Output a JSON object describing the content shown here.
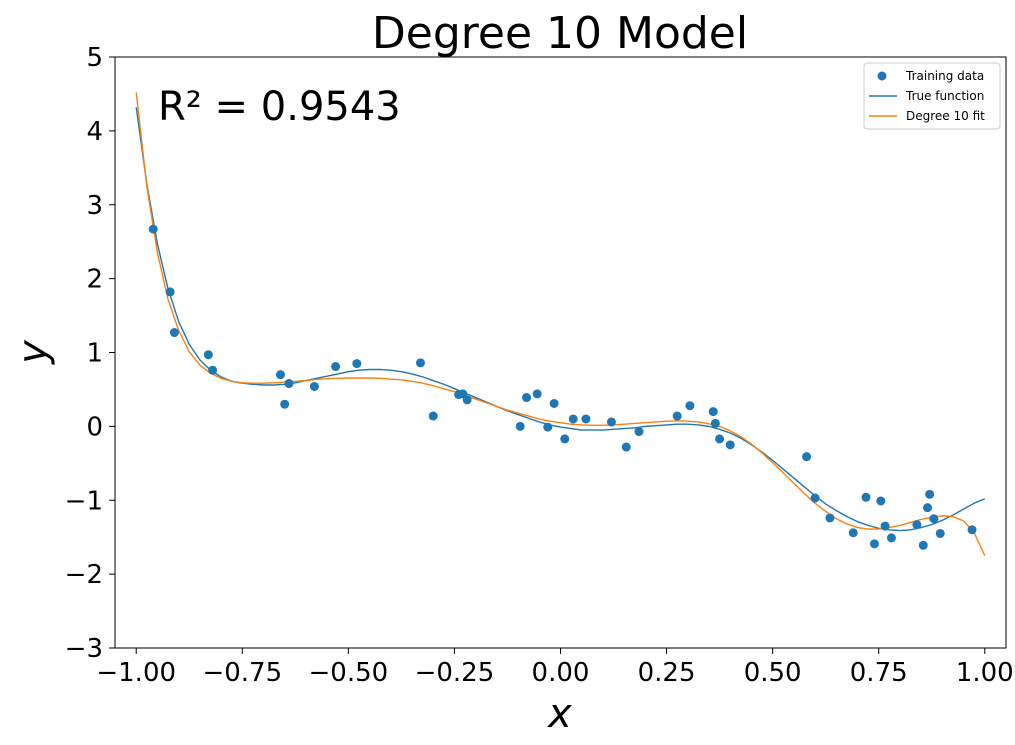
{
  "chart_data": {
    "type": "scatter",
    "title": "Degree 10 Model",
    "xlabel": "x",
    "ylabel": "y",
    "xlim": [
      -1.05,
      1.05
    ],
    "ylim": [
      -3,
      5
    ],
    "xticks": [
      -1.0,
      -0.75,
      -0.5,
      -0.25,
      0.0,
      0.25,
      0.5,
      0.75,
      1.0
    ],
    "xtick_labels": [
      "−1.00",
      "−0.75",
      "−0.50",
      "−0.25",
      "0.00",
      "0.25",
      "0.50",
      "0.75",
      "1.00"
    ],
    "yticks": [
      -3,
      -2,
      -1,
      0,
      1,
      2,
      3,
      4,
      5
    ],
    "ytick_labels": [
      "−3",
      "−2",
      "−1",
      "0",
      "1",
      "2",
      "3",
      "4",
      "5"
    ],
    "annotation": "R² = 0.9543",
    "legend_position": "top-right",
    "colors": {
      "training": "#1f77b4",
      "true_function": "#1f77b4",
      "fit": "#ff7f0e"
    },
    "series": [
      {
        "name": "Training data",
        "kind": "scatter",
        "points": [
          [
            -0.96,
            2.67
          ],
          [
            -0.92,
            1.82
          ],
          [
            -0.91,
            1.27
          ],
          [
            -0.83,
            0.97
          ],
          [
            -0.82,
            0.76
          ],
          [
            -0.66,
            0.7
          ],
          [
            -0.65,
            0.3
          ],
          [
            -0.64,
            0.58
          ],
          [
            -0.58,
            0.54
          ],
          [
            -0.53,
            0.81
          ],
          [
            -0.48,
            0.85
          ],
          [
            -0.33,
            0.86
          ],
          [
            -0.3,
            0.14
          ],
          [
            -0.24,
            0.43
          ],
          [
            -0.23,
            0.44
          ],
          [
            -0.22,
            0.36
          ],
          [
            -0.095,
            0.0
          ],
          [
            -0.08,
            0.39
          ],
          [
            -0.055,
            0.44
          ],
          [
            -0.03,
            -0.01
          ],
          [
            -0.015,
            0.31
          ],
          [
            0.01,
            -0.17
          ],
          [
            0.03,
            0.1
          ],
          [
            0.06,
            0.1
          ],
          [
            0.12,
            0.06
          ],
          [
            0.155,
            -0.28
          ],
          [
            0.185,
            -0.07
          ],
          [
            0.275,
            0.14
          ],
          [
            0.305,
            0.28
          ],
          [
            0.36,
            0.2
          ],
          [
            0.365,
            0.04
          ],
          [
            0.375,
            -0.17
          ],
          [
            0.4,
            -0.25
          ],
          [
            0.58,
            -0.41
          ],
          [
            0.6,
            -0.97
          ],
          [
            0.635,
            -1.24
          ],
          [
            0.69,
            -1.44
          ],
          [
            0.72,
            -0.96
          ],
          [
            0.74,
            -1.59
          ],
          [
            0.755,
            -1.01
          ],
          [
            0.765,
            -1.35
          ],
          [
            0.78,
            -1.51
          ],
          [
            0.84,
            -1.33
          ],
          [
            0.855,
            -1.61
          ],
          [
            0.865,
            -1.1
          ],
          [
            0.87,
            -0.92
          ],
          [
            0.88,
            -1.25
          ],
          [
            0.895,
            -1.45
          ],
          [
            0.97,
            -1.4
          ]
        ]
      },
      {
        "name": "True function",
        "kind": "line",
        "points": [
          [
            -1.0,
            4.32
          ],
          [
            -0.975,
            3.28
          ],
          [
            -0.95,
            2.47
          ],
          [
            -0.925,
            1.86
          ],
          [
            -0.9,
            1.42
          ],
          [
            -0.875,
            1.11
          ],
          [
            -0.85,
            0.9
          ],
          [
            -0.825,
            0.76
          ],
          [
            -0.8,
            0.67
          ],
          [
            -0.775,
            0.61
          ],
          [
            -0.75,
            0.585
          ],
          [
            -0.725,
            0.57
          ],
          [
            -0.7,
            0.56
          ],
          [
            -0.675,
            0.56
          ],
          [
            -0.65,
            0.57
          ],
          [
            -0.625,
            0.59
          ],
          [
            -0.6,
            0.62
          ],
          [
            -0.575,
            0.65
          ],
          [
            -0.55,
            0.68
          ],
          [
            -0.525,
            0.71
          ],
          [
            -0.5,
            0.74
          ],
          [
            -0.475,
            0.76
          ],
          [
            -0.45,
            0.77
          ],
          [
            -0.425,
            0.77
          ],
          [
            -0.4,
            0.76
          ],
          [
            -0.375,
            0.74
          ],
          [
            -0.35,
            0.71
          ],
          [
            -0.325,
            0.67
          ],
          [
            -0.3,
            0.62
          ],
          [
            -0.275,
            0.57
          ],
          [
            -0.25,
            0.51
          ],
          [
            -0.225,
            0.45
          ],
          [
            -0.2,
            0.39
          ],
          [
            -0.175,
            0.33
          ],
          [
            -0.15,
            0.27
          ],
          [
            -0.125,
            0.21
          ],
          [
            -0.1,
            0.16
          ],
          [
            -0.075,
            0.11
          ],
          [
            -0.05,
            0.06
          ],
          [
            -0.025,
            0.02
          ],
          [
            0.0,
            -0.01
          ],
          [
            0.025,
            -0.03
          ],
          [
            0.05,
            -0.05
          ],
          [
            0.075,
            -0.05
          ],
          [
            0.1,
            -0.05
          ],
          [
            0.125,
            -0.04
          ],
          [
            0.15,
            -0.03
          ],
          [
            0.175,
            -0.02
          ],
          [
            0.2,
            0.0
          ],
          [
            0.225,
            0.01
          ],
          [
            0.25,
            0.02
          ],
          [
            0.275,
            0.03
          ],
          [
            0.3,
            0.03
          ],
          [
            0.325,
            0.02
          ],
          [
            0.35,
            0.0
          ],
          [
            0.375,
            -0.04
          ],
          [
            0.4,
            -0.09
          ],
          [
            0.425,
            -0.16
          ],
          [
            0.45,
            -0.25
          ],
          [
            0.475,
            -0.35
          ],
          [
            0.5,
            -0.46
          ],
          [
            0.525,
            -0.58
          ],
          [
            0.55,
            -0.7
          ],
          [
            0.575,
            -0.82
          ],
          [
            0.6,
            -0.94
          ],
          [
            0.625,
            -1.05
          ],
          [
            0.65,
            -1.14
          ],
          [
            0.675,
            -1.22
          ],
          [
            0.7,
            -1.29
          ],
          [
            0.725,
            -1.34
          ],
          [
            0.75,
            -1.38
          ],
          [
            0.775,
            -1.4
          ],
          [
            0.8,
            -1.41
          ],
          [
            0.825,
            -1.4
          ],
          [
            0.85,
            -1.37
          ],
          [
            0.875,
            -1.33
          ],
          [
            0.9,
            -1.27
          ],
          [
            0.925,
            -1.2
          ],
          [
            0.95,
            -1.12
          ],
          [
            0.975,
            -1.04
          ],
          [
            1.0,
            -0.98
          ]
        ]
      },
      {
        "name": "Degree 10 fit",
        "kind": "line",
        "points": [
          [
            -1.0,
            4.52
          ],
          [
            -0.975,
            3.25
          ],
          [
            -0.95,
            2.35
          ],
          [
            -0.925,
            1.72
          ],
          [
            -0.9,
            1.3
          ],
          [
            -0.875,
            1.01
          ],
          [
            -0.85,
            0.83
          ],
          [
            -0.825,
            0.72
          ],
          [
            -0.8,
            0.65
          ],
          [
            -0.775,
            0.61
          ],
          [
            -0.75,
            0.59
          ],
          [
            -0.725,
            0.585
          ],
          [
            -0.7,
            0.585
          ],
          [
            -0.675,
            0.59
          ],
          [
            -0.65,
            0.6
          ],
          [
            -0.625,
            0.61
          ],
          [
            -0.6,
            0.62
          ],
          [
            -0.575,
            0.635
          ],
          [
            -0.55,
            0.645
          ],
          [
            -0.525,
            0.65
          ],
          [
            -0.5,
            0.655
          ],
          [
            -0.475,
            0.655
          ],
          [
            -0.45,
            0.655
          ],
          [
            -0.425,
            0.65
          ],
          [
            -0.4,
            0.64
          ],
          [
            -0.375,
            0.63
          ],
          [
            -0.35,
            0.61
          ],
          [
            -0.325,
            0.585
          ],
          [
            -0.3,
            0.55
          ],
          [
            -0.275,
            0.51
          ],
          [
            -0.25,
            0.47
          ],
          [
            -0.225,
            0.42
          ],
          [
            -0.2,
            0.37
          ],
          [
            -0.175,
            0.32
          ],
          [
            -0.15,
            0.27
          ],
          [
            -0.125,
            0.22
          ],
          [
            -0.1,
            0.18
          ],
          [
            -0.075,
            0.14
          ],
          [
            -0.05,
            0.1
          ],
          [
            -0.025,
            0.07
          ],
          [
            0.0,
            0.05
          ],
          [
            0.025,
            0.03
          ],
          [
            0.05,
            0.02
          ],
          [
            0.075,
            0.015
          ],
          [
            0.1,
            0.015
          ],
          [
            0.125,
            0.02
          ],
          [
            0.15,
            0.03
          ],
          [
            0.175,
            0.04
          ],
          [
            0.2,
            0.05
          ],
          [
            0.225,
            0.06
          ],
          [
            0.25,
            0.07
          ],
          [
            0.275,
            0.075
          ],
          [
            0.3,
            0.07
          ],
          [
            0.325,
            0.06
          ],
          [
            0.35,
            0.035
          ],
          [
            0.375,
            0.0
          ],
          [
            0.4,
            -0.06
          ],
          [
            0.425,
            -0.14
          ],
          [
            0.45,
            -0.24
          ],
          [
            0.475,
            -0.36
          ],
          [
            0.5,
            -0.49
          ],
          [
            0.525,
            -0.63
          ],
          [
            0.55,
            -0.77
          ],
          [
            0.575,
            -0.91
          ],
          [
            0.6,
            -1.04
          ],
          [
            0.625,
            -1.15
          ],
          [
            0.65,
            -1.25
          ],
          [
            0.675,
            -1.32
          ],
          [
            0.7,
            -1.37
          ],
          [
            0.725,
            -1.39
          ],
          [
            0.75,
            -1.39
          ],
          [
            0.775,
            -1.37
          ],
          [
            0.8,
            -1.34
          ],
          [
            0.825,
            -1.3
          ],
          [
            0.85,
            -1.26
          ],
          [
            0.875,
            -1.23
          ],
          [
            0.9,
            -1.21
          ],
          [
            0.925,
            -1.22
          ],
          [
            0.95,
            -1.28
          ],
          [
            0.975,
            -1.44
          ],
          [
            1.0,
            -1.75
          ]
        ]
      }
    ]
  }
}
